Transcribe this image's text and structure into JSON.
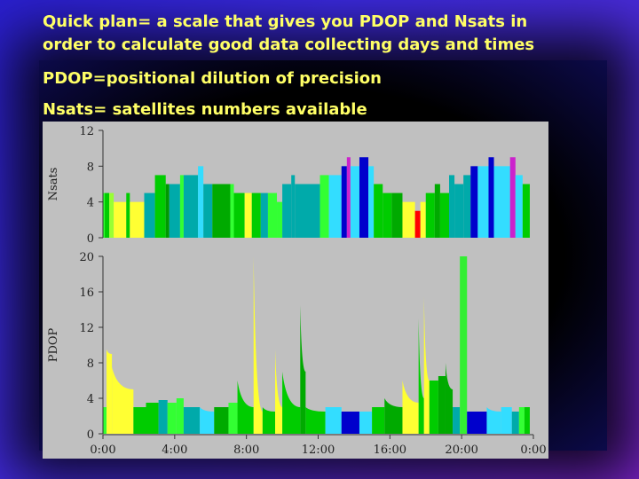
{
  "slide": {
    "line1": "Quick plan= a scale that gives you PDOP and Nsats in",
    "line2": "order to calculate good data collecting days and times",
    "line3": "PDOP=positional dilution of precision",
    "line4": "Nsats= satellites numbers available"
  },
  "colors": {
    "background": "#3b2ae0",
    "text": "#ffff66",
    "panel": "#c0c0c0"
  },
  "chart_data": {
    "type": "area",
    "x": {
      "ticks": [
        "0:00",
        "4:00",
        "8:00",
        "12:00",
        "16:00",
        "20:00",
        "0:00"
      ],
      "range": [
        0,
        24
      ]
    },
    "nsats": {
      "ylabel": "Nsats",
      "ylim": [
        0,
        12
      ],
      "yticks": [
        "0",
        "4",
        "8",
        "12"
      ],
      "segments": [
        {
          "t0": 0.0,
          "t1": 0.1,
          "v": 5,
          "c": "#33ff33"
        },
        {
          "t0": 0.1,
          "t1": 0.35,
          "v": 5,
          "c": "#00cc00"
        },
        {
          "t0": 0.35,
          "t1": 0.6,
          "v": 5,
          "c": "#99ff33"
        },
        {
          "t0": 0.6,
          "t1": 1.3,
          "v": 4,
          "c": "#ffff33"
        },
        {
          "t0": 1.3,
          "t1": 1.5,
          "v": 5,
          "c": "#00cc00"
        },
        {
          "t0": 1.5,
          "t1": 2.3,
          "v": 4,
          "c": "#ffff33"
        },
        {
          "t0": 2.3,
          "t1": 2.9,
          "v": 5,
          "c": "#00aaaa"
        },
        {
          "t0": 2.9,
          "t1": 3.5,
          "v": 7,
          "c": "#00cc00"
        },
        {
          "t0": 3.5,
          "t1": 3.7,
          "v": 6,
          "c": "#009900"
        },
        {
          "t0": 3.7,
          "t1": 4.3,
          "v": 6,
          "c": "#00aaaa"
        },
        {
          "t0": 4.3,
          "t1": 4.5,
          "v": 7,
          "c": "#33ff33"
        },
        {
          "t0": 4.5,
          "t1": 5.3,
          "v": 7,
          "c": "#00aaaa"
        },
        {
          "t0": 5.3,
          "t1": 5.6,
          "v": 8,
          "c": "#33ddff"
        },
        {
          "t0": 5.6,
          "t1": 6.1,
          "v": 6,
          "c": "#00aaaa"
        },
        {
          "t0": 6.1,
          "t1": 7.1,
          "v": 6,
          "c": "#00aa00"
        },
        {
          "t0": 7.1,
          "t1": 7.3,
          "v": 6,
          "c": "#33ff33"
        },
        {
          "t0": 7.3,
          "t1": 7.9,
          "v": 5,
          "c": "#00cc00"
        },
        {
          "t0": 7.9,
          "t1": 8.3,
          "v": 5,
          "c": "#ffff33"
        },
        {
          "t0": 8.3,
          "t1": 8.8,
          "v": 5,
          "c": "#00cc00"
        },
        {
          "t0": 8.8,
          "t1": 9.2,
          "v": 5,
          "c": "#00aaaa"
        },
        {
          "t0": 9.2,
          "t1": 9.7,
          "v": 5,
          "c": "#33ff33"
        },
        {
          "t0": 9.7,
          "t1": 10.0,
          "v": 4,
          "c": "#33ff33"
        },
        {
          "t0": 10.0,
          "t1": 10.5,
          "v": 6,
          "c": "#00aaaa"
        },
        {
          "t0": 10.5,
          "t1": 10.7,
          "v": 7,
          "c": "#00aaaa"
        },
        {
          "t0": 10.7,
          "t1": 12.1,
          "v": 6,
          "c": "#00aaaa"
        },
        {
          "t0": 12.1,
          "t1": 12.6,
          "v": 7,
          "c": "#33ff33"
        },
        {
          "t0": 12.6,
          "t1": 13.3,
          "v": 7,
          "c": "#33ddff"
        },
        {
          "t0": 13.3,
          "t1": 13.6,
          "v": 8,
          "c": "#0000cc"
        },
        {
          "t0": 13.6,
          "t1": 13.8,
          "v": 9,
          "c": "#cc22cc"
        },
        {
          "t0": 13.8,
          "t1": 14.3,
          "v": 8,
          "c": "#33ddff"
        },
        {
          "t0": 14.3,
          "t1": 14.8,
          "v": 9,
          "c": "#0000cc"
        },
        {
          "t0": 14.8,
          "t1": 15.1,
          "v": 8,
          "c": "#33ddff"
        },
        {
          "t0": 15.1,
          "t1": 15.6,
          "v": 6,
          "c": "#00cc00"
        },
        {
          "t0": 15.6,
          "t1": 16.1,
          "v": 5,
          "c": "#00cc00"
        },
        {
          "t0": 16.1,
          "t1": 16.7,
          "v": 5,
          "c": "#00aa00"
        },
        {
          "t0": 16.7,
          "t1": 17.4,
          "v": 4,
          "c": "#ffff33"
        },
        {
          "t0": 17.4,
          "t1": 17.7,
          "v": 3,
          "c": "#ff0000"
        },
        {
          "t0": 17.7,
          "t1": 18.0,
          "v": 4,
          "c": "#ffff33"
        },
        {
          "t0": 18.0,
          "t1": 18.5,
          "v": 5,
          "c": "#00cc00"
        },
        {
          "t0": 18.5,
          "t1": 18.8,
          "v": 6,
          "c": "#00aa00"
        },
        {
          "t0": 18.8,
          "t1": 19.3,
          "v": 5,
          "c": "#00cc00"
        },
        {
          "t0": 19.3,
          "t1": 19.6,
          "v": 7,
          "c": "#00aaaa"
        },
        {
          "t0": 19.6,
          "t1": 20.1,
          "v": 6,
          "c": "#00aaaa"
        },
        {
          "t0": 20.1,
          "t1": 20.5,
          "v": 7,
          "c": "#00aaaa"
        },
        {
          "t0": 20.5,
          "t1": 20.9,
          "v": 8,
          "c": "#0000cc"
        },
        {
          "t0": 20.9,
          "t1": 21.5,
          "v": 8,
          "c": "#33ddff"
        },
        {
          "t0": 21.5,
          "t1": 21.8,
          "v": 9,
          "c": "#0000cc"
        },
        {
          "t0": 21.8,
          "t1": 22.7,
          "v": 8,
          "c": "#33ddff"
        },
        {
          "t0": 22.7,
          "t1": 23.0,
          "v": 9,
          "c": "#cc22cc"
        },
        {
          "t0": 23.0,
          "t1": 23.4,
          "v": 7,
          "c": "#33ddff"
        },
        {
          "t0": 23.4,
          "t1": 23.8,
          "v": 6,
          "c": "#00cc00"
        }
      ]
    },
    "pdop": {
      "ylabel": "PDOP",
      "ylim": [
        0,
        20
      ],
      "yticks": [
        "0",
        "4",
        "8",
        "12",
        "16",
        "20"
      ],
      "segments": [
        {
          "t0": 0.0,
          "t1": 0.2,
          "v0": 3.0,
          "v1": 3.0,
          "c": "#33ff33"
        },
        {
          "t0": 0.2,
          "t1": 0.5,
          "v0": 9.5,
          "v1": 9.0,
          "c": "#ffff33"
        },
        {
          "t0": 0.5,
          "t1": 1.7,
          "v0": 7.5,
          "v1": 5.0,
          "c": "#ffff33"
        },
        {
          "t0": 1.7,
          "t1": 2.4,
          "v0": 3.0,
          "v1": 3.0,
          "c": "#00cc00"
        },
        {
          "t0": 2.4,
          "t1": 3.1,
          "v0": 3.5,
          "v1": 3.5,
          "c": "#00cc00"
        },
        {
          "t0": 3.1,
          "t1": 3.6,
          "v0": 3.8,
          "v1": 3.8,
          "c": "#00aaaa"
        },
        {
          "t0": 3.6,
          "t1": 4.1,
          "v0": 3.5,
          "v1": 3.5,
          "c": "#33ff33"
        },
        {
          "t0": 4.1,
          "t1": 4.5,
          "v0": 4.0,
          "v1": 4.0,
          "c": "#33ff33"
        },
        {
          "t0": 4.5,
          "t1": 5.4,
          "v0": 3.0,
          "v1": 3.0,
          "c": "#00aaaa"
        },
        {
          "t0": 5.4,
          "t1": 6.2,
          "v0": 3.0,
          "v1": 2.5,
          "c": "#33ddff"
        },
        {
          "t0": 6.2,
          "t1": 7.0,
          "v0": 3.0,
          "v1": 3.0,
          "c": "#00aa00"
        },
        {
          "t0": 7.0,
          "t1": 7.5,
          "v0": 3.5,
          "v1": 3.5,
          "c": "#33ff33"
        },
        {
          "t0": 7.5,
          "t1": 8.4,
          "v0": 6.0,
          "v1": 3.0,
          "c": "#00cc00"
        },
        {
          "t0": 8.4,
          "t1": 8.9,
          "v0": 20.0,
          "v1": 2.5,
          "c": "#ffff33"
        },
        {
          "t0": 8.9,
          "t1": 9.6,
          "v0": 3.0,
          "v1": 2.5,
          "c": "#00cc00"
        },
        {
          "t0": 9.6,
          "t1": 10.0,
          "v0": 9.5,
          "v1": 3.0,
          "c": "#ffff33"
        },
        {
          "t0": 10.0,
          "t1": 11.0,
          "v0": 7.0,
          "v1": 3.0,
          "c": "#00cc00"
        },
        {
          "t0": 11.0,
          "t1": 11.3,
          "v0": 14.5,
          "v1": 7.0,
          "c": "#00aa00"
        },
        {
          "t0": 11.3,
          "t1": 12.4,
          "v0": 3.0,
          "v1": 2.5,
          "c": "#00cc00"
        },
        {
          "t0": 12.4,
          "t1": 13.3,
          "v0": 3.0,
          "v1": 3.0,
          "c": "#33ddff"
        },
        {
          "t0": 13.3,
          "t1": 14.3,
          "v0": 2.5,
          "v1": 2.5,
          "c": "#0000cc"
        },
        {
          "t0": 14.3,
          "t1": 15.0,
          "v0": 2.5,
          "v1": 2.5,
          "c": "#33ddff"
        },
        {
          "t0": 15.0,
          "t1": 15.7,
          "v0": 3.0,
          "v1": 3.0,
          "c": "#00cc00"
        },
        {
          "t0": 15.7,
          "t1": 16.7,
          "v0": 4.0,
          "v1": 3.0,
          "c": "#00aa00"
        },
        {
          "t0": 16.7,
          "t1": 17.6,
          "v0": 6.0,
          "v1": 3.5,
          "c": "#ffff33"
        },
        {
          "t0": 17.6,
          "t1": 17.9,
          "v0": 13.0,
          "v1": 4.0,
          "c": "#00cc00"
        },
        {
          "t0": 17.9,
          "t1": 18.2,
          "v0": 15.5,
          "v1": 6.0,
          "c": "#ffff33"
        },
        {
          "t0": 18.2,
          "t1": 18.7,
          "v0": 6.0,
          "v1": 6.0,
          "c": "#00cc00"
        },
        {
          "t0": 18.7,
          "t1": 19.1,
          "v0": 6.5,
          "v1": 6.5,
          "c": "#00aa00"
        },
        {
          "t0": 19.1,
          "t1": 19.5,
          "v0": 8.0,
          "v1": 5.0,
          "c": "#00aa00"
        },
        {
          "t0": 19.5,
          "t1": 19.9,
          "v0": 3.0,
          "v1": 3.0,
          "c": "#00aaaa"
        },
        {
          "t0": 19.9,
          "t1": 20.3,
          "v0": 20.0,
          "v1": 20.0,
          "c": "#33ee33"
        },
        {
          "t0": 20.3,
          "t1": 21.4,
          "v0": 2.5,
          "v1": 2.5,
          "c": "#0000cc"
        },
        {
          "t0": 21.4,
          "t1": 22.2,
          "v0": 3.0,
          "v1": 2.5,
          "c": "#33ddff"
        },
        {
          "t0": 22.2,
          "t1": 22.8,
          "v0": 3.0,
          "v1": 3.0,
          "c": "#33ddff"
        },
        {
          "t0": 22.8,
          "t1": 23.2,
          "v0": 2.5,
          "v1": 2.5,
          "c": "#00aaaa"
        },
        {
          "t0": 23.2,
          "t1": 23.5,
          "v0": 3.0,
          "v1": 3.0,
          "c": "#33ff33"
        },
        {
          "t0": 23.5,
          "t1": 23.8,
          "v0": 3.0,
          "v1": 3.0,
          "c": "#00cc00"
        }
      ]
    }
  }
}
